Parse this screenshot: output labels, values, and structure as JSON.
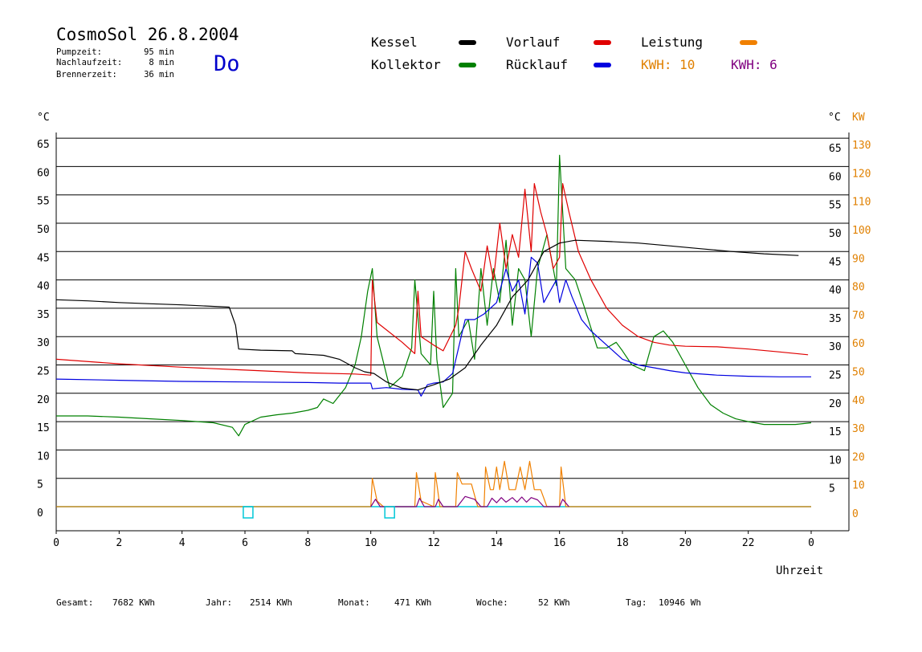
{
  "header": {
    "title": "CosmoSol 26.8.2004",
    "day": "Do",
    "stats": [
      {
        "label": "Pumpzeit:",
        "value": "95 min"
      },
      {
        "label": "Nachlaufzeit:",
        "value": "8 min"
      },
      {
        "label": "Brennerzeit:",
        "value": "36 min"
      }
    ]
  },
  "legend": {
    "items": [
      {
        "label": "Kessel",
        "color": "#000000"
      },
      {
        "label": "Vorlauf",
        "color": "#e00000"
      },
      {
        "label": "Leistung",
        "color": "#f08000"
      },
      {
        "label": "Kollektor",
        "color": "#008000"
      },
      {
        "label": "Rücklauf",
        "color": "#0000e0"
      }
    ],
    "kwh": [
      {
        "label": "KWH: 10",
        "color": "#e08000"
      },
      {
        "label": "KWH: 6",
        "color": "#800080"
      }
    ]
  },
  "footer": [
    {
      "label": "Gesamt:",
      "value": "7682 KWh"
    },
    {
      "label": "Jahr:",
      "value": "2514 KWh"
    },
    {
      "label": "Monat:",
      "value": "471 KWh"
    },
    {
      "label": "Woche:",
      "value": "52 KWh"
    },
    {
      "label": "Tag:",
      "value": "10946 Wh"
    }
  ],
  "chart_data": {
    "type": "line",
    "xlabel": "Uhrzeit",
    "x_ticks": [
      "0",
      "2",
      "4",
      "6",
      "8",
      "10",
      "12",
      "14",
      "16",
      "18",
      "20",
      "22",
      "0"
    ],
    "xlim": [
      0,
      24
    ],
    "y_left": {
      "unit": "°C",
      "ticks": [
        0,
        5,
        10,
        15,
        20,
        25,
        30,
        35,
        40,
        45,
        50,
        55,
        60,
        65
      ],
      "lim": [
        0,
        65
      ]
    },
    "y_right": {
      "unit": "°C",
      "ticks": [
        5,
        10,
        15,
        20,
        25,
        30,
        35,
        40,
        45,
        50,
        55,
        60,
        65
      ]
    },
    "y_power": {
      "unit": "KW",
      "ticks": [
        0,
        10,
        20,
        30,
        40,
        50,
        60,
        70,
        80,
        90,
        100,
        110,
        120,
        130
      ]
    },
    "grid": true,
    "series": [
      {
        "name": "Kessel",
        "color": "#000000",
        "points": [
          [
            0,
            36.5
          ],
          [
            1,
            36.3
          ],
          [
            2,
            36
          ],
          [
            3,
            35.8
          ],
          [
            4,
            35.6
          ],
          [
            5.5,
            35.2
          ],
          [
            5.7,
            32
          ],
          [
            5.8,
            27.8
          ],
          [
            6.5,
            27.6
          ],
          [
            7.5,
            27.5
          ],
          [
            7.6,
            27.0
          ],
          [
            8.5,
            26.7
          ],
          [
            9,
            26
          ],
          [
            9.5,
            24.5
          ],
          [
            9.8,
            23.8
          ],
          [
            10.1,
            23.5
          ],
          [
            10.5,
            22
          ],
          [
            11,
            20.9
          ],
          [
            11.5,
            20.6
          ],
          [
            12,
            21.5
          ],
          [
            12.5,
            22.5
          ],
          [
            13,
            24.5
          ],
          [
            13.5,
            28.5
          ],
          [
            14,
            32
          ],
          [
            14.5,
            37
          ],
          [
            15,
            40
          ],
          [
            15.5,
            45
          ],
          [
            16,
            46.5
          ],
          [
            16.5,
            47
          ],
          [
            17.5,
            46.8
          ],
          [
            18.5,
            46.5
          ],
          [
            19.5,
            46.0
          ],
          [
            20.5,
            45.5
          ],
          [
            21.5,
            45.0
          ],
          [
            22.5,
            44.6
          ],
          [
            23.6,
            44.3
          ]
        ]
      },
      {
        "name": "Vorlauf",
        "color": "#e00000",
        "points": [
          [
            0,
            26
          ],
          [
            2,
            25.2
          ],
          [
            4,
            24.6
          ],
          [
            6,
            24.1
          ],
          [
            8,
            23.6
          ],
          [
            9.5,
            23.4
          ],
          [
            10,
            23.2
          ],
          [
            10.05,
            40
          ],
          [
            10.2,
            32.5
          ],
          [
            11,
            29
          ],
          [
            11.4,
            27
          ],
          [
            11.5,
            38
          ],
          [
            11.6,
            30
          ],
          [
            12,
            28.5
          ],
          [
            12.3,
            27.5
          ],
          [
            12.7,
            32
          ],
          [
            12.8,
            35
          ],
          [
            13,
            45
          ],
          [
            13.2,
            42
          ],
          [
            13.5,
            38
          ],
          [
            13.7,
            46
          ],
          [
            13.9,
            40
          ],
          [
            14.1,
            50
          ],
          [
            14.3,
            42
          ],
          [
            14.5,
            48
          ],
          [
            14.7,
            44
          ],
          [
            14.9,
            56
          ],
          [
            15.1,
            45
          ],
          [
            15.2,
            57
          ],
          [
            15.4,
            52
          ],
          [
            15.6,
            48
          ],
          [
            15.8,
            42
          ],
          [
            16,
            44
          ],
          [
            16.1,
            57
          ],
          [
            16.3,
            52
          ],
          [
            16.6,
            45
          ],
          [
            17,
            40
          ],
          [
            17.5,
            35
          ],
          [
            18,
            32
          ],
          [
            18.5,
            30
          ],
          [
            19,
            29
          ],
          [
            19.5,
            28.5
          ],
          [
            20,
            28.3
          ],
          [
            21,
            28.2
          ],
          [
            22,
            27.8
          ],
          [
            23,
            27.3
          ],
          [
            23.9,
            26.8
          ]
        ]
      },
      {
        "name": "Kollektor",
        "color": "#008000",
        "points": [
          [
            0,
            16
          ],
          [
            1,
            16
          ],
          [
            2,
            15.8
          ],
          [
            3,
            15.5
          ],
          [
            4,
            15.2
          ],
          [
            5,
            14.8
          ],
          [
            5.6,
            14
          ],
          [
            5.8,
            12.5
          ],
          [
            6,
            14.5
          ],
          [
            6.5,
            15.8
          ],
          [
            7,
            16.2
          ],
          [
            7.5,
            16.5
          ],
          [
            8,
            17
          ],
          [
            8.3,
            17.5
          ],
          [
            8.5,
            19
          ],
          [
            8.8,
            18.2
          ],
          [
            9.2,
            21
          ],
          [
            9.5,
            25
          ],
          [
            9.7,
            30
          ],
          [
            9.9,
            38
          ],
          [
            10.05,
            42
          ],
          [
            10.2,
            30
          ],
          [
            10.6,
            21
          ],
          [
            11,
            23
          ],
          [
            11.3,
            28
          ],
          [
            11.4,
            40
          ],
          [
            11.6,
            27
          ],
          [
            11.9,
            25
          ],
          [
            12.0,
            38
          ],
          [
            12.1,
            26
          ],
          [
            12.3,
            17.5
          ],
          [
            12.6,
            20
          ],
          [
            12.7,
            42
          ],
          [
            12.8,
            30
          ],
          [
            13.1,
            33
          ],
          [
            13.3,
            26
          ],
          [
            13.5,
            42
          ],
          [
            13.7,
            32
          ],
          [
            13.9,
            42
          ],
          [
            14.1,
            36
          ],
          [
            14.3,
            47
          ],
          [
            14.5,
            32
          ],
          [
            14.7,
            42
          ],
          [
            14.9,
            40
          ],
          [
            15.1,
            30
          ],
          [
            15.3,
            42
          ],
          [
            15.6,
            48
          ],
          [
            15.9,
            39
          ],
          [
            16.0,
            62
          ],
          [
            16.2,
            42
          ],
          [
            16.5,
            40
          ],
          [
            16.8,
            35
          ],
          [
            17.2,
            28
          ],
          [
            17.5,
            28
          ],
          [
            17.8,
            29
          ],
          [
            18,
            27.5
          ],
          [
            18.3,
            25
          ],
          [
            18.7,
            24
          ],
          [
            19,
            30
          ],
          [
            19.3,
            31
          ],
          [
            19.6,
            29
          ],
          [
            20,
            25
          ],
          [
            20.4,
            21
          ],
          [
            20.8,
            18
          ],
          [
            21.2,
            16.5
          ],
          [
            21.6,
            15.5
          ],
          [
            22,
            15
          ],
          [
            22.5,
            14.5
          ],
          [
            23,
            14.5
          ],
          [
            23.5,
            14.5
          ],
          [
            24,
            14.8
          ]
        ]
      },
      {
        "name": "Rücklauf",
        "color": "#0000e0",
        "points": [
          [
            0,
            22.5
          ],
          [
            2,
            22.3
          ],
          [
            4,
            22.1
          ],
          [
            6,
            22
          ],
          [
            8,
            21.9
          ],
          [
            9,
            21.8
          ],
          [
            10,
            21.8
          ],
          [
            10.05,
            20.8
          ],
          [
            10.5,
            21
          ],
          [
            11,
            20.7
          ],
          [
            11.5,
            20.6
          ],
          [
            11.6,
            19.5
          ],
          [
            11.8,
            21.5
          ],
          [
            12,
            21.8
          ],
          [
            12.3,
            22
          ],
          [
            12.6,
            23.5
          ],
          [
            13,
            33
          ],
          [
            13.3,
            33
          ],
          [
            13.6,
            34
          ],
          [
            14,
            36
          ],
          [
            14.3,
            42
          ],
          [
            14.5,
            38
          ],
          [
            14.7,
            40
          ],
          [
            14.9,
            34
          ],
          [
            15.1,
            44
          ],
          [
            15.3,
            43
          ],
          [
            15.5,
            36
          ],
          [
            15.7,
            38
          ],
          [
            15.9,
            40
          ],
          [
            16.0,
            36
          ],
          [
            16.2,
            40
          ],
          [
            16.4,
            37
          ],
          [
            16.7,
            33
          ],
          [
            17,
            31
          ],
          [
            17.5,
            28.5
          ],
          [
            18,
            26
          ],
          [
            18.5,
            25
          ],
          [
            19,
            24.5
          ],
          [
            19.5,
            24
          ],
          [
            20,
            23.6
          ],
          [
            21,
            23.2
          ],
          [
            22,
            23
          ],
          [
            23,
            22.9
          ],
          [
            24,
            22.9
          ]
        ]
      },
      {
        "name": "Leistung",
        "color": "#f08000",
        "points": [
          [
            0,
            0
          ],
          [
            10,
            0
          ],
          [
            10.05,
            5
          ],
          [
            10.2,
            1
          ],
          [
            10.4,
            0
          ],
          [
            11.4,
            0
          ],
          [
            11.45,
            6
          ],
          [
            11.6,
            1
          ],
          [
            12,
            0
          ],
          [
            12.05,
            6
          ],
          [
            12.2,
            0
          ],
          [
            12.7,
            0
          ],
          [
            12.75,
            6
          ],
          [
            12.9,
            4
          ],
          [
            13.2,
            4
          ],
          [
            13.4,
            0
          ],
          [
            13.6,
            0
          ],
          [
            13.65,
            7
          ],
          [
            13.8,
            3
          ],
          [
            13.9,
            3
          ],
          [
            14.0,
            7
          ],
          [
            14.1,
            3
          ],
          [
            14.25,
            8
          ],
          [
            14.4,
            3
          ],
          [
            14.6,
            3
          ],
          [
            14.75,
            7
          ],
          [
            14.9,
            3
          ],
          [
            15.05,
            8
          ],
          [
            15.2,
            3
          ],
          [
            15.4,
            3
          ],
          [
            15.6,
            0
          ],
          [
            16.0,
            0
          ],
          [
            16.05,
            7
          ],
          [
            16.2,
            0
          ],
          [
            24,
            0
          ]
        ]
      },
      {
        "name": "KWH",
        "color": "#800080",
        "points": [
          [
            10,
            0
          ],
          [
            10.15,
            1.3
          ],
          [
            10.3,
            0
          ],
          [
            11.45,
            0
          ],
          [
            11.55,
            1.5
          ],
          [
            11.7,
            0
          ],
          [
            12.05,
            0
          ],
          [
            12.15,
            1.3
          ],
          [
            12.3,
            0
          ],
          [
            12.75,
            0
          ],
          [
            13.0,
            1.8
          ],
          [
            13.3,
            1.3
          ],
          [
            13.5,
            0
          ],
          [
            13.7,
            0
          ],
          [
            13.85,
            1.5
          ],
          [
            14.0,
            0.7
          ],
          [
            14.15,
            1.6
          ],
          [
            14.3,
            0.8
          ],
          [
            14.5,
            1.6
          ],
          [
            14.65,
            0.8
          ],
          [
            14.8,
            1.7
          ],
          [
            14.95,
            0.8
          ],
          [
            15.1,
            1.6
          ],
          [
            15.3,
            1.2
          ],
          [
            15.5,
            0
          ],
          [
            16.0,
            0
          ],
          [
            16.1,
            1.3
          ],
          [
            16.3,
            0
          ]
        ]
      }
    ],
    "markers": [
      6.1,
      10.6
    ]
  }
}
